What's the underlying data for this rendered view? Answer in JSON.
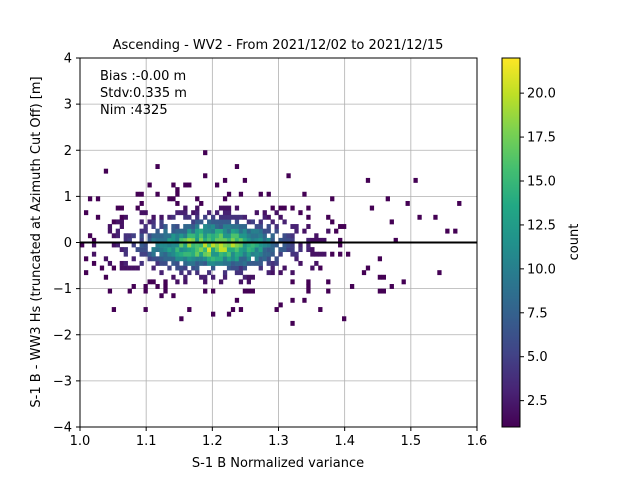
{
  "chart_data": {
    "type": "heatmap",
    "title": "Ascending - WV2 - From 2021/12/02 to 2021/12/15",
    "xlabel": "S-1 B Normalized variance",
    "ylabel": "S-1 B - WW3 Hs (truncated at Azimuth Cut Off) [m]",
    "xlim": [
      1.0,
      1.6
    ],
    "ylim": [
      -4,
      4
    ],
    "xticks": [
      "1.0",
      "1.1",
      "1.2",
      "1.3",
      "1.4",
      "1.5",
      "1.6"
    ],
    "yticks": [
      "4",
      "3",
      "2",
      "1",
      "0",
      "−1",
      "−2",
      "−3",
      "−4"
    ],
    "grid": true,
    "annotations": [
      "Bias :-0.00 m",
      "Stdv:0.335 m",
      "Nim :4325"
    ],
    "reference_line_y": 0,
    "colorbar": {
      "label": "count",
      "range": [
        1,
        22
      ],
      "ticks": [
        "20.0",
        "17.5",
        "15.0",
        "12.5",
        "10.0",
        "7.5",
        "5.0",
        "2.5"
      ],
      "colormap": "viridis"
    },
    "distribution": {
      "center_x": 1.2,
      "center_y": -0.05,
      "peak_count": 22,
      "x_spread": 0.07,
      "y_spread": 0.33,
      "x_extent": [
        1.0,
        1.6
      ],
      "y_extent": [
        -2.1,
        2.3
      ]
    }
  }
}
